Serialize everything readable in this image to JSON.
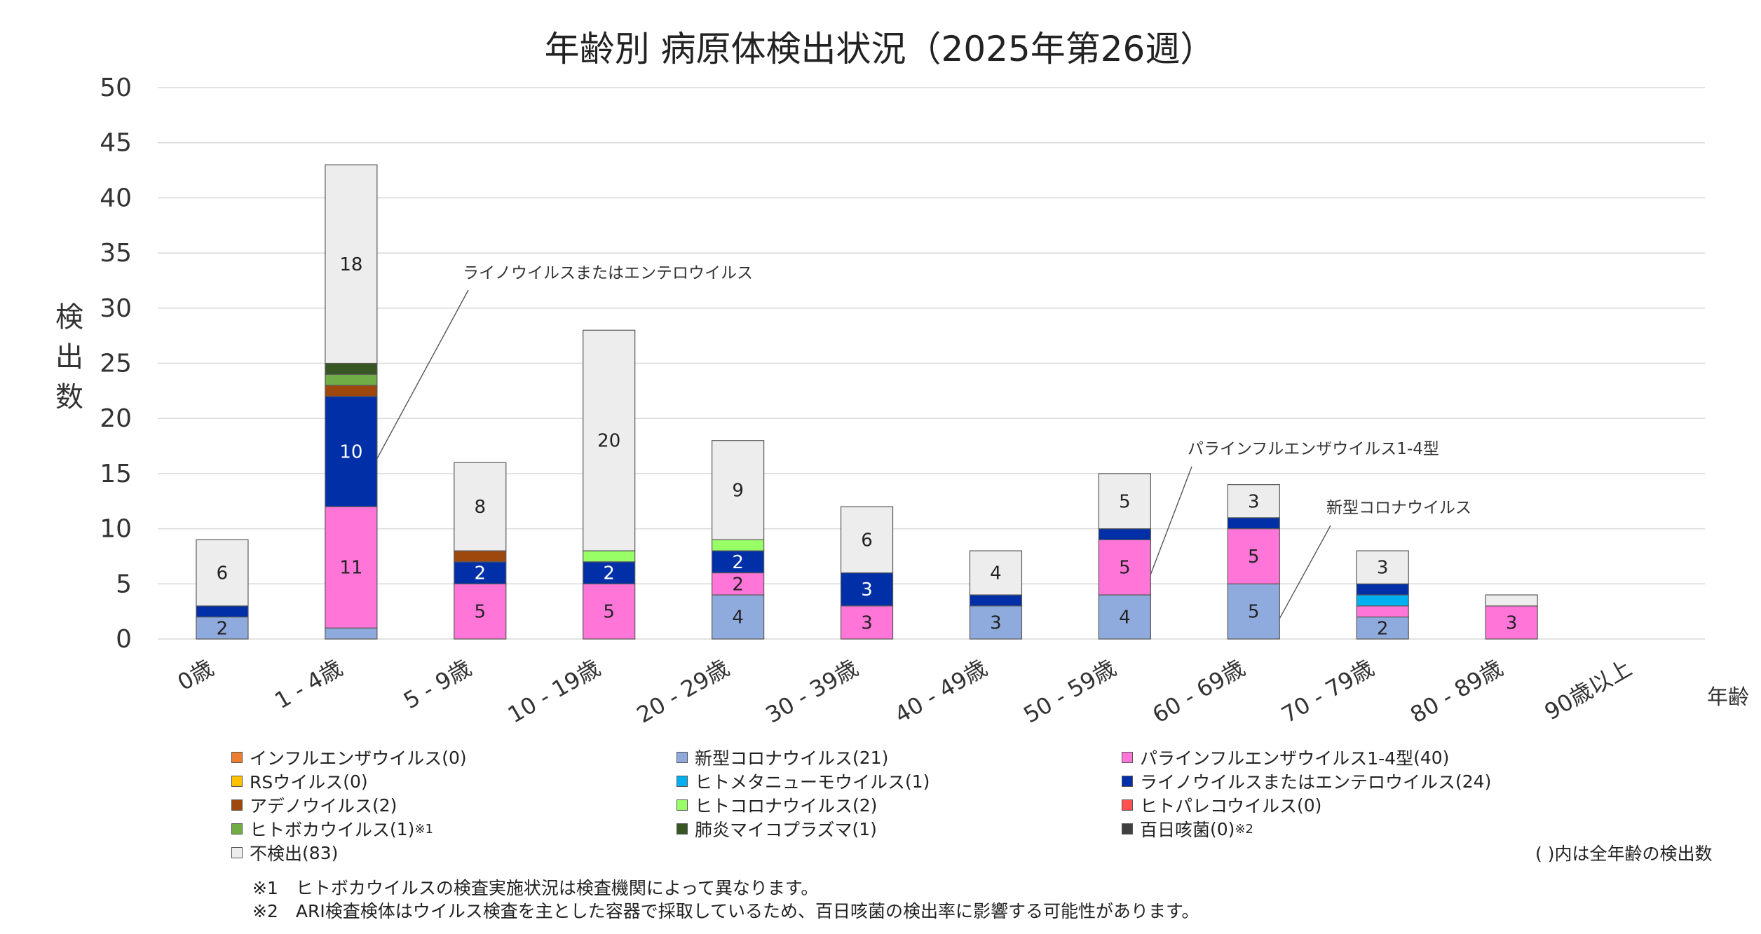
{
  "chart_data": {
    "type": "bar",
    "stacked": true,
    "title": "年齢別 病原体検出状況（2025年第26週）",
    "ylabel": "検出数",
    "xlabel": "年齢",
    "ylim": [
      0,
      50
    ],
    "yticks": [
      0,
      5,
      10,
      15,
      20,
      25,
      30,
      35,
      40,
      45,
      50
    ],
    "grid": true,
    "categories": [
      "0歳",
      "1 - 4歳",
      "5 - 9歳",
      "10 - 19歳",
      "20 - 29歳",
      "30 - 39歳",
      "40 - 49歳",
      "50 - 59歳",
      "60 - 69歳",
      "70 - 79歳",
      "80 - 89歳",
      "90歳以上"
    ],
    "series": [
      {
        "name": "インフルエンザウイルス",
        "count": "(0)",
        "color": "#ED7D31",
        "values": [
          0,
          0,
          0,
          0,
          0,
          0,
          0,
          0,
          0,
          0,
          0,
          0
        ]
      },
      {
        "name": "新型コロナウイルス",
        "count": "(21)",
        "color": "#8FAADC",
        "values": [
          2,
          1,
          0,
          0,
          4,
          0,
          3,
          4,
          5,
          2,
          0,
          0
        ]
      },
      {
        "name": "パラインフルエンザウイルス1-4型",
        "count": "(40)",
        "color": "#FF75D8",
        "values": [
          0,
          11,
          5,
          5,
          2,
          3,
          0,
          5,
          5,
          1,
          3,
          0
        ]
      },
      {
        "name": "RSウイルス",
        "count": "(0)",
        "color": "#FFC000",
        "values": [
          0,
          0,
          0,
          0,
          0,
          0,
          0,
          0,
          0,
          0,
          0,
          0
        ]
      },
      {
        "name": "ヒトメタニューモウイルス",
        "count": "(1)",
        "color": "#00B0F0",
        "values": [
          0,
          0,
          0,
          0,
          0,
          0,
          0,
          0,
          0,
          1,
          0,
          0
        ]
      },
      {
        "name": "ライノウイルスまたはエンテロウイルス",
        "count": "(24)",
        "color": "#002FA7",
        "values": [
          1,
          10,
          2,
          2,
          2,
          3,
          1,
          1,
          1,
          1,
          0,
          0
        ]
      },
      {
        "name": "アデノウイルス",
        "count": "(2)",
        "color": "#9E480E",
        "values": [
          0,
          1,
          1,
          0,
          0,
          0,
          0,
          0,
          0,
          0,
          0,
          0
        ]
      },
      {
        "name": "ヒトコロナウイルス",
        "count": "(2)",
        "color": "#99FF66",
        "values": [
          0,
          0,
          0,
          1,
          1,
          0,
          0,
          0,
          0,
          0,
          0,
          0
        ]
      },
      {
        "name": "ヒトパレコウイルス",
        "count": "(0)",
        "color": "#FF5050",
        "values": [
          0,
          0,
          0,
          0,
          0,
          0,
          0,
          0,
          0,
          0,
          0,
          0
        ]
      },
      {
        "name": "ヒトボカウイルス",
        "count": "(1)",
        "note": "※1",
        "color": "#70AD47",
        "values": [
          0,
          1,
          0,
          0,
          0,
          0,
          0,
          0,
          0,
          0,
          0,
          0
        ]
      },
      {
        "name": "肺炎マイコプラズマ",
        "count": "(1)",
        "color": "#375623",
        "values": [
          0,
          1,
          0,
          0,
          0,
          0,
          0,
          0,
          0,
          0,
          0,
          0
        ]
      },
      {
        "name": "百日咳菌",
        "count": "(0)",
        "note": "※2",
        "color": "#404040",
        "values": [
          0,
          0,
          0,
          0,
          0,
          0,
          0,
          0,
          0,
          0,
          0,
          0
        ]
      },
      {
        "name": "不検出",
        "count": "(83)",
        "color": "#EDEDED",
        "values": [
          6,
          18,
          8,
          20,
          9,
          6,
          4,
          5,
          3,
          3,
          1,
          0
        ]
      }
    ],
    "data_labels": [
      {
        "category": 0,
        "series": "新型コロナウイルス",
        "text": "2"
      },
      {
        "category": 0,
        "series": "不検出",
        "text": "6"
      },
      {
        "category": 1,
        "series": "パラインフルエンザウイルス1-4型",
        "text": "11"
      },
      {
        "category": 1,
        "series": "ライノウイルスまたはエンテロウイルス",
        "text": "10"
      },
      {
        "category": 1,
        "series": "不検出",
        "text": "18"
      },
      {
        "category": 2,
        "series": "パラインフルエンザウイルス1-4型",
        "text": "5"
      },
      {
        "category": 2,
        "series": "ライノウイルスまたはエンテロウイルス",
        "text": "2"
      },
      {
        "category": 2,
        "series": "不検出",
        "text": "8"
      },
      {
        "category": 3,
        "series": "パラインフルエンザウイルス1-4型",
        "text": "5"
      },
      {
        "category": 3,
        "series": "ライノウイルスまたはエンテロウイルス",
        "text": "2"
      },
      {
        "category": 3,
        "series": "不検出",
        "text": "20"
      },
      {
        "category": 4,
        "series": "新型コロナウイルス",
        "text": "4"
      },
      {
        "category": 4,
        "series": "パラインフルエンザウイルス1-4型",
        "text": "2"
      },
      {
        "category": 4,
        "series": "ライノウイルスまたはエンテロウイルス",
        "text": "2"
      },
      {
        "category": 4,
        "series": "不検出",
        "text": "9"
      },
      {
        "category": 5,
        "series": "パラインフルエンザウイルス1-4型",
        "text": "3"
      },
      {
        "category": 5,
        "series": "ライノウイルスまたはエンテロウイルス",
        "text": "3"
      },
      {
        "category": 5,
        "series": "不検出",
        "text": "6"
      },
      {
        "category": 6,
        "series": "新型コロナウイルス",
        "text": "3"
      },
      {
        "category": 6,
        "series": "不検出",
        "text": "4"
      },
      {
        "category": 7,
        "series": "新型コロナウイルス",
        "text": "4"
      },
      {
        "category": 7,
        "series": "パラインフルエンザウイルス1-4型",
        "text": "5"
      },
      {
        "category": 7,
        "series": "不検出",
        "text": "5"
      },
      {
        "category": 8,
        "series": "新型コロナウイルス",
        "text": "5"
      },
      {
        "category": 8,
        "series": "パラインフルエンザウイルス1-4型",
        "text": "5"
      },
      {
        "category": 8,
        "series": "不検出",
        "text": "3"
      },
      {
        "category": 9,
        "series": "新型コロナウイルス",
        "text": "2"
      },
      {
        "category": 9,
        "series": "不検出",
        "text": "3"
      },
      {
        "category": 10,
        "series": "パラインフルエンザウイルス1-4型",
        "text": "3"
      }
    ],
    "annotations": [
      {
        "text": "ライノウイルスまたはエンテロウイルス",
        "category": 1,
        "series": "ライノウイルスまたはエンテロウイルス"
      },
      {
        "text": "パラインフルエンザウイルス1-4型",
        "category": 7,
        "series": "パラインフルエンザウイルス1-4型"
      },
      {
        "text": "新型コロナウイルス",
        "category": 8,
        "series": "新型コロナウイルス"
      }
    ]
  },
  "legend_note": "( )内は全年齢の検出数",
  "footnotes": [
    "※1　ヒトボカウイルスの検査実施状況は検査機関によって異なります。",
    "※2　ARI検査検体はウイルス検査を主とした容器で採取しているため、百日咳菌の検出率に影響する可能性があります。"
  ]
}
